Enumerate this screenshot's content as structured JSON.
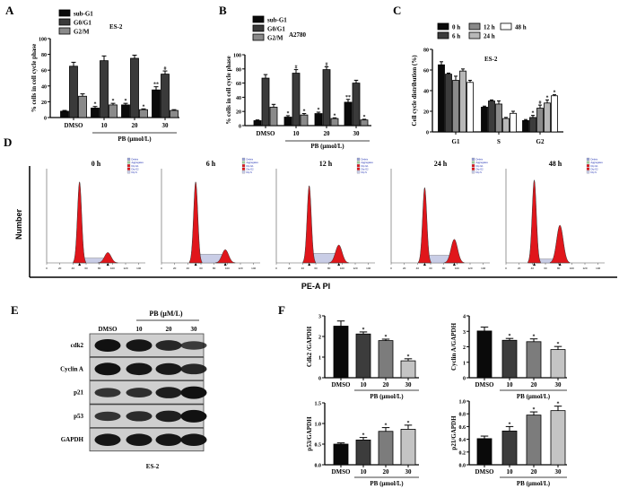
{
  "panel_labels": [
    "A",
    "B",
    "C",
    "D",
    "E",
    "F"
  ],
  "chart_data": [
    {
      "id": "A",
      "type": "bar",
      "title": "ES-2",
      "ylabel": "% cells in cell cycle phase",
      "xlabel": "PB (μmol/L)",
      "categories": [
        "DMSO",
        "10",
        "20",
        "30"
      ],
      "ylim": [
        0,
        100
      ],
      "yticks": [
        0,
        20,
        40,
        60,
        80,
        100
      ],
      "series": [
        {
          "name": "sub-G1",
          "color": "#0a0a0a",
          "values": [
            8,
            12,
            16,
            35
          ],
          "errors": [
            1,
            2,
            2,
            4
          ],
          "marks": [
            "",
            "*",
            "*",
            "**"
          ]
        },
        {
          "name": "G0/G1",
          "color": "#3a3a3a",
          "values": [
            65,
            72,
            75,
            55
          ],
          "errors": [
            5,
            6,
            4,
            4
          ],
          "marks": [
            "",
            "",
            "",
            "#"
          ]
        },
        {
          "name": "G2/M",
          "color": "#8a8a8a",
          "values": [
            27,
            16,
            10,
            9
          ],
          "errors": [
            3,
            2,
            1,
            1
          ],
          "marks": [
            "",
            "*",
            "*",
            ""
          ]
        }
      ]
    },
    {
      "id": "B",
      "type": "bar",
      "title": "A2780",
      "ylabel": "% cells in cell cycle phase",
      "xlabel": "PB (μmol/L)",
      "categories": [
        "DMSO",
        "10",
        "20",
        "30"
      ],
      "ylim": [
        0,
        100
      ],
      "yticks": [
        0,
        20,
        40,
        60,
        80,
        100
      ],
      "series": [
        {
          "name": "sub-G1",
          "color": "#0a0a0a",
          "values": [
            7,
            12,
            17,
            33
          ],
          "errors": [
            1,
            2,
            2,
            4
          ],
          "marks": [
            "",
            "*",
            "*",
            "**"
          ]
        },
        {
          "name": "G0/G1",
          "color": "#3a3a3a",
          "values": [
            67,
            74,
            79,
            60
          ],
          "errors": [
            5,
            5,
            4,
            4
          ],
          "marks": [
            "",
            "#",
            "#",
            ""
          ]
        },
        {
          "name": "G2/M",
          "color": "#8a8a8a",
          "values": [
            26,
            15,
            10,
            8
          ],
          "errors": [
            4,
            2,
            1,
            1
          ],
          "marks": [
            "",
            "*",
            "*",
            "*"
          ]
        }
      ]
    },
    {
      "id": "C",
      "type": "bar",
      "title": "ES-2",
      "ylabel": "Cell cycle distribution (%)",
      "xlabel": "",
      "categories": [
        "G1",
        "S",
        "G2"
      ],
      "ylim": [
        0,
        80
      ],
      "yticks": [
        0,
        20,
        40,
        60,
        80
      ],
      "series": [
        {
          "name": "0 h",
          "color": "#0a0a0a",
          "values": [
            65,
            24,
            11
          ],
          "errors": [
            3,
            1,
            1
          ],
          "marks": [
            "",
            "",
            ""
          ]
        },
        {
          "name": "6 h",
          "color": "#3c3c3c",
          "values": [
            56,
            30,
            14
          ],
          "errors": [
            1,
            1,
            2
          ],
          "marks": [
            "",
            "",
            "*"
          ]
        },
        {
          "name": "12 h",
          "color": "#8a8a8a",
          "values": [
            50,
            27,
            23
          ],
          "errors": [
            4,
            3,
            3
          ],
          "marks": [
            "",
            "",
            "#"
          ]
        },
        {
          "name": "24 h",
          "color": "#b8b8b8",
          "values": [
            59,
            13,
            28
          ],
          "errors": [
            2,
            1,
            3
          ],
          "marks": [
            "",
            "",
            "*"
          ]
        },
        {
          "name": "48 h",
          "color": "#ffffff",
          "values": [
            48,
            18,
            35
          ],
          "errors": [
            2,
            2,
            1
          ],
          "marks": [
            "",
            "",
            "*"
          ]
        }
      ]
    },
    {
      "id": "D",
      "type": "area",
      "ylabel": "Number",
      "xlabel": "PE-A PI",
      "x_ticks": [
        0,
        20,
        40,
        60,
        80,
        100,
        120,
        140
      ],
      "xlim": [
        0,
        150
      ],
      "legend": [
        "Debris",
        "Aggregates",
        "Dip G1",
        "Dip G2",
        "Dip S"
      ],
      "histograms": [
        {
          "title": "0 h",
          "g1_mean": 50,
          "g1_height": 0.86,
          "g2_mean": 93,
          "g2_height": 0.11,
          "s_level": 0.05
        },
        {
          "title": "6 h",
          "g1_mean": 52,
          "g1_height": 0.86,
          "g2_mean": 97,
          "g2_height": 0.14,
          "s_level": 0.09
        },
        {
          "title": "12 h",
          "g1_mean": 50,
          "g1_height": 0.82,
          "g2_mean": 95,
          "g2_height": 0.19,
          "s_level": 0.1
        },
        {
          "title": "24 h",
          "g1_mean": 51,
          "g1_height": 0.8,
          "g2_mean": 96,
          "g2_height": 0.25,
          "s_level": 0.08
        },
        {
          "title": "48 h",
          "g1_mean": 43,
          "g1_height": 0.88,
          "g2_mean": 82,
          "g2_height": 0.4,
          "s_level": 0.04
        }
      ]
    },
    {
      "id": "F1",
      "type": "bar",
      "ylabel": "Cdk2 /GAPDH",
      "xlabel": "PB (μmol/L)",
      "categories": [
        "DMSO",
        "10",
        "20",
        "30"
      ],
      "ylim": [
        0,
        3
      ],
      "yticks": [
        "0",
        "1",
        "2",
        "3"
      ],
      "series": [
        {
          "name": "Cdk2",
          "colors": [
            "#0a0a0a",
            "#3c3c3c",
            "#7c7c7c",
            "#c4c4c4"
          ],
          "values": [
            2.5,
            2.12,
            1.8,
            0.82
          ],
          "errors": [
            0.25,
            0.1,
            0.07,
            0.1
          ],
          "marks": [
            "",
            "*",
            "*",
            "*"
          ]
        }
      ]
    },
    {
      "id": "F2",
      "type": "bar",
      "ylabel": "Cyclin A/GAPDH",
      "xlabel": "PB (μmol/L)",
      "categories": [
        "DMSO",
        "10",
        "20",
        "30"
      ],
      "ylim": [
        0,
        4
      ],
      "yticks": [
        "0",
        "1",
        "2",
        "3",
        "4"
      ],
      "series": [
        {
          "name": "Cyclin A",
          "colors": [
            "#0a0a0a",
            "#3c3c3c",
            "#7c7c7c",
            "#c4c4c4"
          ],
          "values": [
            3.02,
            2.42,
            2.33,
            1.82
          ],
          "errors": [
            0.25,
            0.12,
            0.18,
            0.2
          ],
          "marks": [
            "",
            "*",
            "*",
            "*"
          ]
        }
      ]
    },
    {
      "id": "F3",
      "type": "bar",
      "ylabel": "p53/GAPDH",
      "xlabel": "PB (μmol/L)",
      "categories": [
        "DMSO",
        "10",
        "20",
        "30"
      ],
      "ylim": [
        0,
        1.5
      ],
      "yticks": [
        "0.0",
        "0.5",
        "1.0",
        "1.5"
      ],
      "series": [
        {
          "name": "p53",
          "colors": [
            "#0a0a0a",
            "#3c3c3c",
            "#7c7c7c",
            "#c4c4c4"
          ],
          "values": [
            0.5,
            0.6,
            0.81,
            0.86
          ],
          "errors": [
            0.03,
            0.06,
            0.09,
            0.1
          ],
          "marks": [
            "",
            "*",
            "*",
            "*"
          ]
        }
      ]
    },
    {
      "id": "F4",
      "type": "bar",
      "ylabel": "p21/GAPDH",
      "xlabel": "PB (μmol/L)",
      "categories": [
        "DMSO",
        "10",
        "20",
        "30"
      ],
      "ylim": [
        0,
        1.0
      ],
      "yticks": [
        "0.0",
        "0.2",
        "0.4",
        "0.6",
        "0.8",
        "1.0"
      ],
      "series": [
        {
          "name": "p21",
          "colors": [
            "#0a0a0a",
            "#3c3c3c",
            "#7c7c7c",
            "#c4c4c4"
          ],
          "values": [
            0.41,
            0.53,
            0.78,
            0.85
          ],
          "errors": [
            0.04,
            0.07,
            0.05,
            0.07
          ],
          "marks": [
            "",
            "*",
            "*",
            "*"
          ]
        }
      ]
    }
  ],
  "blot": {
    "treatment_label": "PB (μM/L)",
    "lanes": [
      "DMSO",
      "10",
      "20",
      "30"
    ],
    "cell_line": "ES-2",
    "rows": [
      {
        "label": "cdk2",
        "intensity": [
          1.0,
          0.95,
          0.75,
          0.5
        ]
      },
      {
        "label": "Cyclin A",
        "intensity": [
          1.0,
          0.95,
          0.9,
          0.75
        ]
      },
      {
        "label": "p21",
        "intensity": [
          0.6,
          0.65,
          0.85,
          1.0
        ]
      },
      {
        "label": "p53",
        "intensity": [
          0.6,
          0.7,
          0.85,
          1.0
        ]
      },
      {
        "label": "GAPDH",
        "intensity": [
          0.95,
          0.95,
          0.95,
          0.95
        ]
      }
    ]
  }
}
